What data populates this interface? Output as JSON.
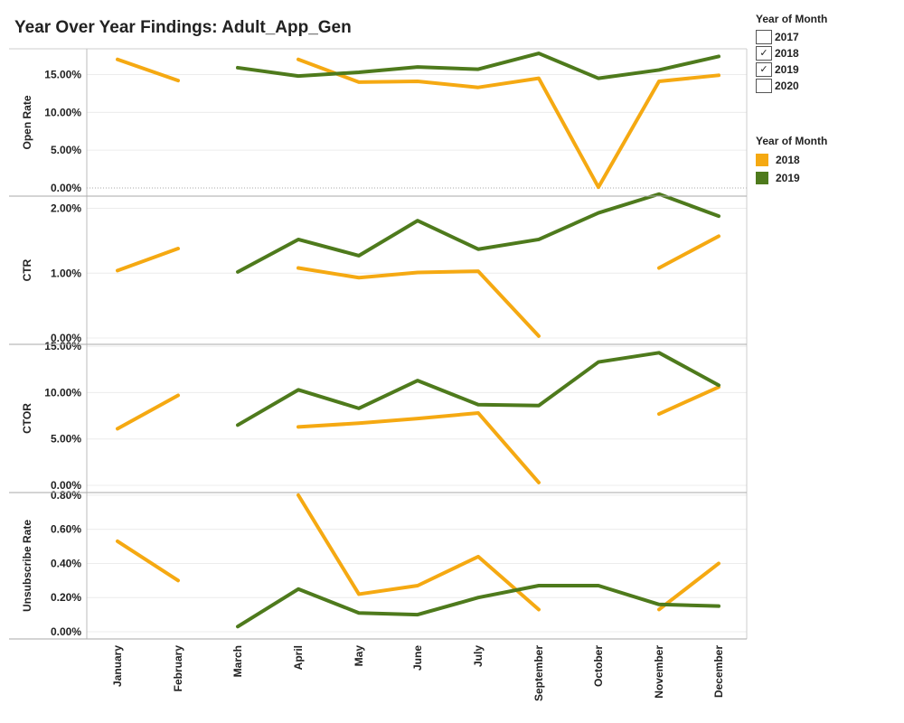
{
  "title": "Year Over Year Findings: Adult_App_Gen",
  "filter_legend": {
    "title": "Year of Month",
    "items": [
      {
        "label": "2017",
        "checked": false,
        "mark": ""
      },
      {
        "label": "2018",
        "checked": true,
        "mark": "✓"
      },
      {
        "label": "2019",
        "checked": true,
        "mark": "✓"
      },
      {
        "label": "2020",
        "checked": false,
        "mark": ""
      }
    ]
  },
  "color_legend": {
    "title": "Year of Month",
    "items": [
      {
        "label": "2018",
        "color": "#F5A912"
      },
      {
        "label": "2019",
        "color": "#4E7A1C"
      }
    ]
  },
  "chart_data": [
    {
      "type": "line",
      "ylabel": "Open Rate",
      "ylim": [
        0,
        19
      ],
      "yticks": [
        0,
        5,
        10,
        15
      ],
      "ytick_labels": [
        "0.00%",
        "5.00%",
        "10.00%",
        "15.00%"
      ],
      "categories": [
        "January",
        "February",
        "March",
        "April",
        "May",
        "June",
        "July",
        "September",
        "October",
        "November",
        "December"
      ],
      "series": [
        {
          "name": "2018",
          "color": "#F5A912",
          "values": [
            17.0,
            14.2,
            null,
            17.0,
            14.0,
            14.1,
            13.3,
            14.5,
            0.1,
            14.1,
            14.9
          ]
        },
        {
          "name": "2019",
          "color": "#4E7A1C",
          "values": [
            null,
            null,
            15.9,
            14.8,
            15.3,
            16.0,
            15.7,
            17.8,
            14.5,
            15.6,
            17.4
          ]
        }
      ]
    },
    {
      "type": "line",
      "ylabel": "CTR",
      "ylim": [
        0,
        2.3
      ],
      "yticks": [
        0,
        1,
        2
      ],
      "ytick_labels": [
        "0.00%",
        "1.00%",
        "2.00%"
      ],
      "categories": [
        "January",
        "February",
        "March",
        "April",
        "May",
        "June",
        "July",
        "September",
        "October",
        "November",
        "December"
      ],
      "series": [
        {
          "name": "2018",
          "color": "#F5A912",
          "values": [
            1.04,
            1.38,
            null,
            1.08,
            0.93,
            1.01,
            1.03,
            0.03,
            null,
            1.08,
            1.57
          ]
        },
        {
          "name": "2019",
          "color": "#4E7A1C",
          "values": [
            null,
            null,
            1.02,
            1.52,
            1.27,
            1.81,
            1.37,
            1.52,
            1.93,
            2.22,
            1.88
          ]
        }
      ]
    },
    {
      "type": "line",
      "ylabel": "CTOR",
      "ylim": [
        0,
        15.5
      ],
      "yticks": [
        0,
        5,
        10,
        15
      ],
      "ytick_labels": [
        "0.00%",
        "5.00%",
        "10.00%",
        "15.00%"
      ],
      "categories": [
        "January",
        "February",
        "March",
        "April",
        "May",
        "June",
        "July",
        "September",
        "October",
        "November",
        "December"
      ],
      "series": [
        {
          "name": "2018",
          "color": "#F5A912",
          "values": [
            6.1,
            9.7,
            null,
            6.3,
            6.7,
            7.2,
            7.8,
            0.3,
            null,
            7.7,
            10.6
          ]
        },
        {
          "name": "2019",
          "color": "#4E7A1C",
          "values": [
            null,
            null,
            6.5,
            10.3,
            8.3,
            11.3,
            8.7,
            8.6,
            13.3,
            14.3,
            10.8
          ]
        }
      ]
    },
    {
      "type": "line",
      "ylabel": "Unsubscribe Rate",
      "ylim": [
        0,
        0.81
      ],
      "yticks": [
        0,
        0.2,
        0.4,
        0.6,
        0.8
      ],
      "ytick_labels": [
        "0.00%",
        "0.20%",
        "0.40%",
        "0.60%",
        "0.80%"
      ],
      "categories": [
        "January",
        "February",
        "March",
        "April",
        "May",
        "June",
        "July",
        "September",
        "October",
        "November",
        "December"
      ],
      "series": [
        {
          "name": "2018",
          "color": "#F5A912",
          "values": [
            0.53,
            0.3,
            null,
            0.8,
            0.22,
            0.27,
            0.44,
            0.13,
            null,
            0.13,
            0.4
          ]
        },
        {
          "name": "2019",
          "color": "#4E7A1C",
          "values": [
            null,
            null,
            0.03,
            0.25,
            0.11,
            0.1,
            0.2,
            0.27,
            0.27,
            0.16,
            0.15
          ]
        }
      ]
    }
  ]
}
